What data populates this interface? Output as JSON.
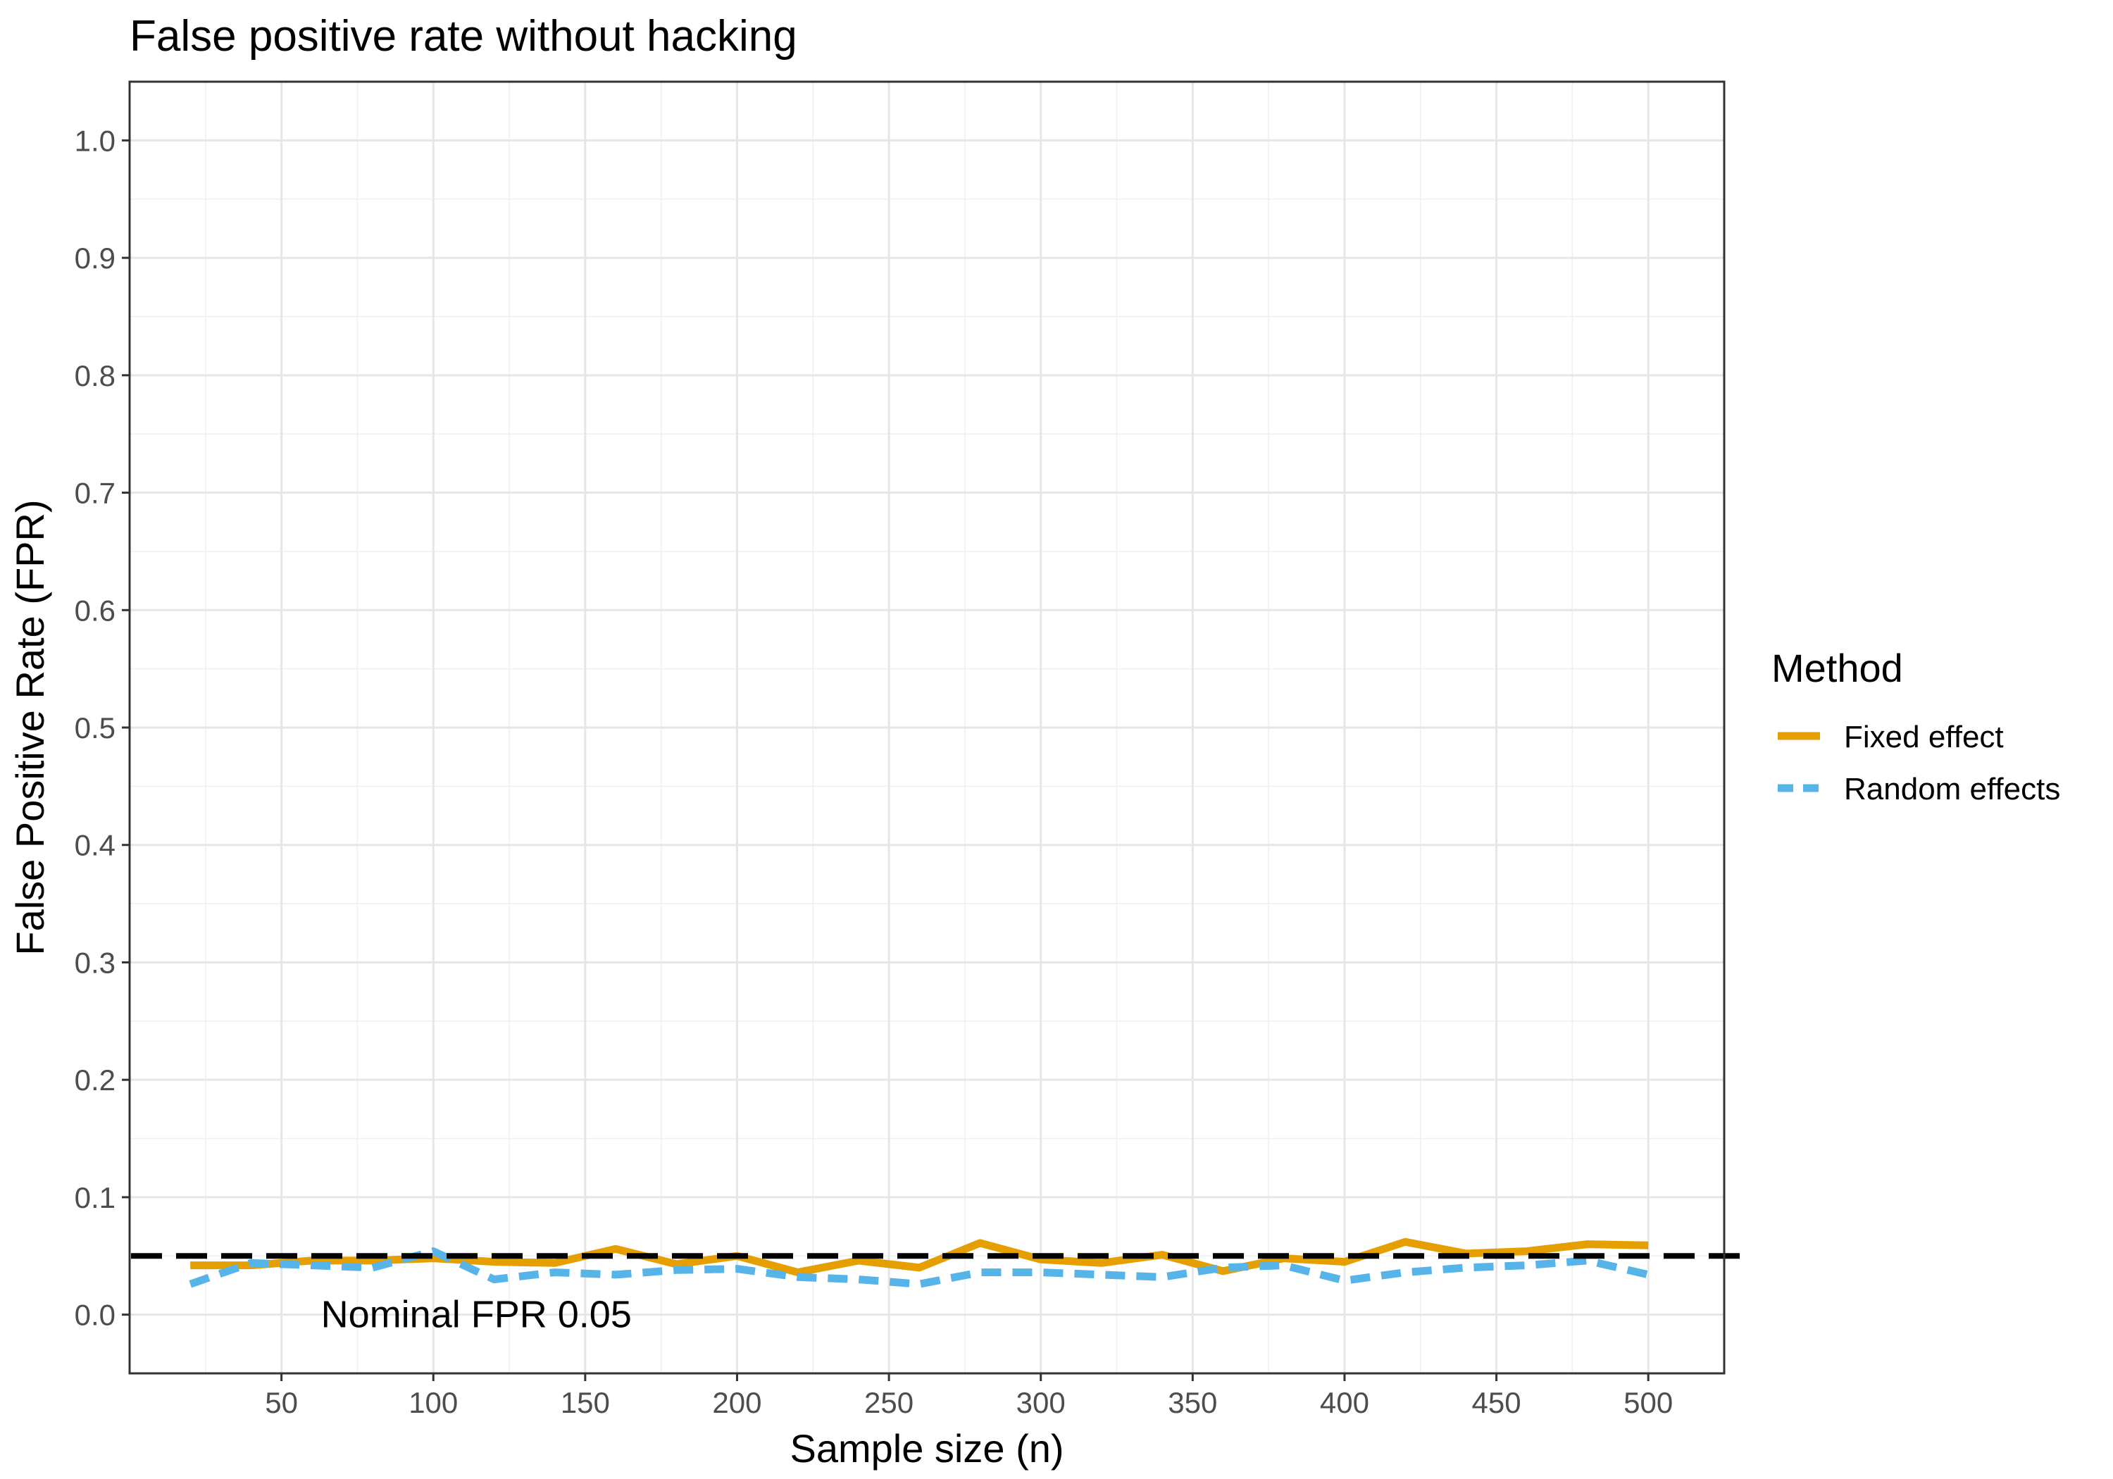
{
  "chart_data": {
    "type": "line",
    "title": "False positive rate without hacking",
    "xlabel": "Sample size (n)",
    "ylabel": "False Positive Rate (FPR)",
    "xlim": [
      0,
      525
    ],
    "ylim": [
      -0.05,
      1.05
    ],
    "x_ticks": [
      50,
      100,
      150,
      200,
      250,
      300,
      350,
      400,
      450,
      500
    ],
    "y_ticks": [
      0.0,
      0.1,
      0.2,
      0.3,
      0.4,
      0.5,
      0.6,
      0.7,
      0.8,
      0.9,
      1.0
    ],
    "y_tick_labels": [
      "0.0",
      "0.1",
      "0.2",
      "0.3",
      "0.4",
      "0.5",
      "0.6",
      "0.7",
      "0.8",
      "0.9",
      "1.0"
    ],
    "grid": true,
    "legend": {
      "title": "Method",
      "position": "right",
      "entries": [
        "Fixed effect",
        "Random effects"
      ]
    },
    "x": [
      20,
      40,
      60,
      80,
      100,
      120,
      140,
      160,
      180,
      200,
      220,
      240,
      260,
      280,
      300,
      320,
      340,
      360,
      380,
      400,
      420,
      440,
      460,
      480,
      500
    ],
    "series": [
      {
        "name": "Fixed effect",
        "color": "#E69F00",
        "dash": "solid",
        "values": [
          0.042,
          0.042,
          0.046,
          0.046,
          0.048,
          0.045,
          0.044,
          0.056,
          0.043,
          0.05,
          0.036,
          0.046,
          0.04,
          0.061,
          0.047,
          0.044,
          0.051,
          0.037,
          0.048,
          0.045,
          0.062,
          0.052,
          0.054,
          0.06,
          0.059
        ]
      },
      {
        "name": "Random effects",
        "color": "#56B4E9",
        "dash": "dashed",
        "values": [
          0.026,
          0.044,
          0.042,
          0.04,
          0.054,
          0.03,
          0.036,
          0.034,
          0.038,
          0.039,
          0.032,
          0.03,
          0.026,
          0.036,
          0.036,
          0.034,
          0.032,
          0.04,
          0.042,
          0.029,
          0.036,
          0.04,
          0.042,
          0.046,
          0.034
        ]
      }
    ],
    "reference_line": {
      "y": 0.05,
      "color": "#000000",
      "dash": "dashed",
      "label": "Nominal FPR 0.05",
      "label_x": 63
    }
  }
}
